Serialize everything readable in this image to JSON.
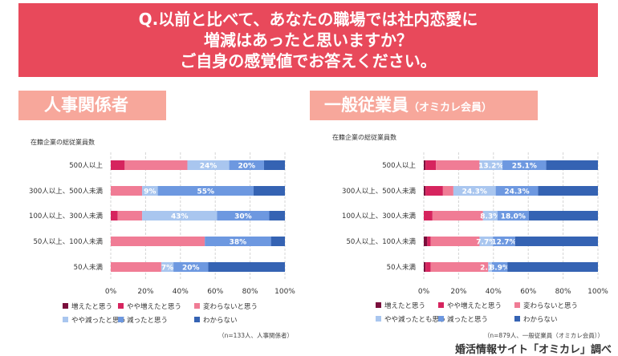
{
  "question": {
    "line1": "Q.以前と比べて、あなたの職場では社内恋愛に",
    "line2": "増減はあったと思いますか？",
    "line3": "ご自身の感覚値でお答えください。"
  },
  "left_panel": {
    "title": "人事関係者",
    "subtitle": ""
  },
  "right_panel": {
    "title": "一般従業員",
    "subtitle": "（オミカレ会員）"
  },
  "footer": "婚活情報サイト「オミカレ」調べ",
  "colors": {
    "banner": "#e8495b",
    "panel_title": "#f7a79b",
    "series": [
      "#7a0f3c",
      "#d6245e",
      "#f07c95",
      "#a9c6ef",
      "#6d98e0",
      "#3563b3"
    ]
  },
  "chart_data": [
    {
      "type": "bar",
      "orientation": "horizontal",
      "stacked": true,
      "subtitle": "在籍企業の総従業員数",
      "categories": [
        "500人以上",
        "300人以上、500人未満",
        "100人以上、300人未満",
        "50人以上、100人未満",
        "50人未満"
      ],
      "series": [
        {
          "name": "増えたと思う",
          "values": [
            0,
            0,
            0,
            0,
            0
          ]
        },
        {
          "name": "やや増えたと思う",
          "values": [
            8,
            0,
            4,
            0,
            0
          ]
        },
        {
          "name": "変わらないと思う",
          "values": [
            36,
            18,
            14,
            54,
            29
          ]
        },
        {
          "name": "やや減ったと思う",
          "values": [
            24,
            9,
            43,
            0,
            7
          ]
        },
        {
          "name": "減ったと思う",
          "values": [
            20,
            55,
            30,
            38,
            20
          ]
        },
        {
          "name": "わからない",
          "values": [
            12,
            18,
            9,
            8,
            44
          ]
        }
      ],
      "value_labels": [
        [
          "",
          "",
          "",
          "24%",
          "20%",
          ""
        ],
        [
          "",
          "",
          "",
          "9%",
          "55%",
          ""
        ],
        [
          "",
          "",
          "",
          "43%",
          "30%",
          ""
        ],
        [
          "",
          "",
          "",
          "",
          "38%",
          ""
        ],
        [
          "",
          "",
          "",
          "7%",
          "20%",
          ""
        ]
      ],
      "x_ticks": [
        "0%",
        "20%",
        "40%",
        "60%",
        "80%",
        "100%"
      ],
      "xlim": [
        0,
        100
      ],
      "legend_position": "bottom",
      "note": "（n=133人、人事関係者）"
    },
    {
      "type": "bar",
      "orientation": "horizontal",
      "stacked": true,
      "subtitle": "在籍企業の総従業員数",
      "categories": [
        "500人以上",
        "300人以上、500人未満",
        "100人以上、300人未満",
        "50人以上、100人未満",
        "50人未満"
      ],
      "series": [
        {
          "name": "増えたと思う",
          "values": [
            1,
            1,
            0,
            2,
            1
          ]
        },
        {
          "name": "やや増えたと思う",
          "values": [
            6,
            10,
            5,
            2,
            3
          ]
        },
        {
          "name": "変わらないと思う",
          "values": [
            25,
            6,
            29,
            28,
            33
          ]
        },
        {
          "name": "やや減ったと思う",
          "values": [
            13.2,
            24.3,
            8.3,
            7.7,
            2.1
          ]
        },
        {
          "name": "減ったと思う",
          "values": [
            25.1,
            24.3,
            18.0,
            12.7,
            8.9
          ]
        },
        {
          "name": "わからない",
          "values": [
            29.7,
            34.4,
            39.7,
            47.6,
            52.0
          ]
        }
      ],
      "value_labels": [
        [
          "",
          "",
          "",
          "13.2%",
          "25.1%",
          ""
        ],
        [
          "",
          "",
          "",
          "24.3%",
          "24.3%",
          ""
        ],
        [
          "",
          "",
          "",
          "8.3%",
          "18.0%",
          ""
        ],
        [
          "",
          "",
          "",
          "7.7%",
          "12.7%",
          ""
        ],
        [
          "",
          "",
          "",
          "2.1%",
          "8.9%",
          ""
        ]
      ],
      "x_ticks": [
        "0%",
        "20%",
        "40%",
        "60%",
        "80%",
        "100%"
      ],
      "xlim": [
        0,
        100
      ],
      "legend_position": "bottom",
      "legend_labels": [
        "増えたと思う",
        "やや増えたと思う",
        "変わらないと思う",
        "やや減ったとも思う",
        "減ったと思う",
        "わからない"
      ],
      "note": "（n=879人、一般従業員（オミカレ会員））"
    }
  ]
}
